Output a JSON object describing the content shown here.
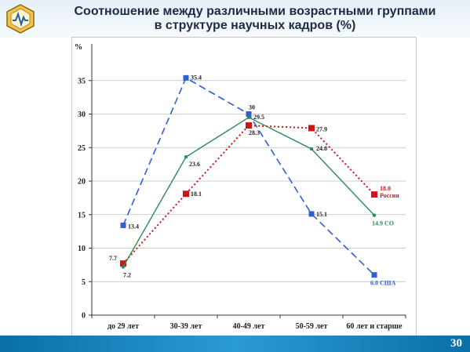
{
  "header": {
    "title_line1": "Соотношение между различными возрастными группами",
    "title_line2": "в структуре научных кадров (%)"
  },
  "footer": {
    "page_number": "30"
  },
  "colors": {
    "usa": "#2f5fd0",
    "russia": "#d01515",
    "co": "#2e8b57"
  },
  "chart_data": {
    "type": "line",
    "ylabel": "%",
    "ylim": [
      0,
      40
    ],
    "yticks": [
      "0",
      "5",
      "10",
      "15",
      "20",
      "25",
      "30",
      "35"
    ],
    "grid": true,
    "categories": [
      "до 29 лет",
      "30-39 лет",
      "40-49 лет",
      "50-59 лет",
      "60 лет и старше"
    ],
    "series": [
      {
        "key": "usa",
        "name": "США",
        "end_label": "6.0 США",
        "values": [
          13.4,
          35.4,
          30,
          15.1,
          6.0
        ],
        "labels": [
          "13.4",
          "35.4",
          "30",
          "15.1",
          ""
        ]
      },
      {
        "key": "russia",
        "name": "Россия",
        "end_label": "18.0 Россия",
        "values": [
          7.7,
          18.1,
          28.3,
          27.9,
          18.0
        ],
        "labels": [
          "7.7",
          "18.1",
          "28.3",
          "27.9",
          ""
        ]
      },
      {
        "key": "co",
        "name": "СО",
        "end_label": "14.9 СО",
        "values": [
          7.2,
          23.6,
          29.5,
          24.8,
          14.9
        ],
        "labels": [
          "7.2",
          "23.6",
          "29.5",
          "24.8",
          ""
        ]
      }
    ]
  }
}
